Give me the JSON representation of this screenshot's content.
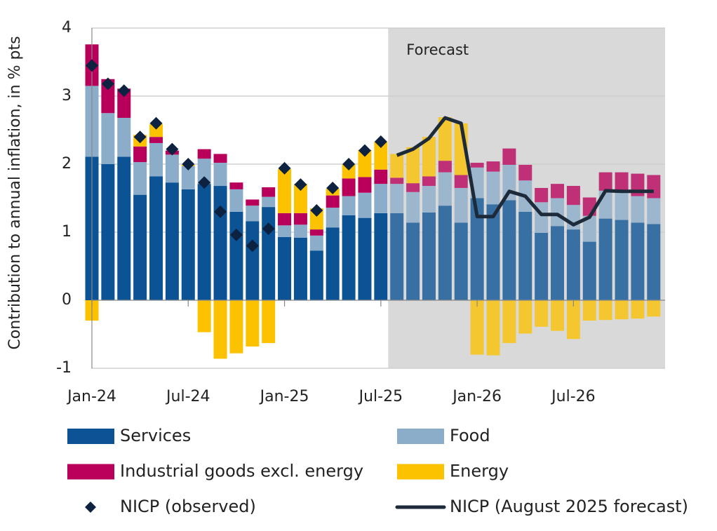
{
  "chart_data": {
    "type": "bar",
    "stacked": true,
    "ylabel": "Contribution to annual inflation, in % pts",
    "annotation": "Forecast",
    "categories": [
      "Jan-24",
      null,
      null,
      null,
      null,
      null,
      "Jul-24",
      null,
      null,
      null,
      null,
      null,
      "Jan-25",
      null,
      null,
      null,
      null,
      null,
      "Jul-25",
      null,
      null,
      null,
      null,
      null,
      "Jan-26",
      null,
      null,
      null,
      null,
      null,
      "Jul-26",
      null,
      null,
      null,
      null,
      null
    ],
    "ylim": [
      -1,
      4
    ],
    "yticks": [
      -1,
      0,
      1,
      2,
      3,
      4
    ],
    "grid": true,
    "series": [
      {
        "name": "Services",
        "type": "bar",
        "color": "#0b5394",
        "values": [
          2.11,
          2.0,
          2.11,
          1.55,
          1.82,
          1.73,
          1.63,
          1.71,
          1.68,
          1.3,
          1.16,
          1.37,
          0.93,
          0.92,
          0.73,
          1.07,
          1.25,
          1.21,
          1.28,
          1.28,
          1.14,
          1.29,
          1.39,
          1.14,
          1.5,
          1.41,
          1.47,
          1.3,
          0.99,
          1.09,
          1.04,
          0.86,
          1.2,
          1.18,
          1.14,
          1.12
        ]
      },
      {
        "name": "Food",
        "type": "bar",
        "color": "#8badca",
        "values": [
          1.04,
          0.75,
          0.57,
          0.48,
          0.49,
          0.41,
          0.34,
          0.37,
          0.34,
          0.33,
          0.23,
          0.15,
          0.17,
          0.19,
          0.22,
          0.29,
          0.28,
          0.37,
          0.43,
          0.43,
          0.45,
          0.39,
          0.49,
          0.51,
          0.45,
          0.48,
          0.52,
          0.46,
          0.45,
          0.41,
          0.36,
          0.38,
          0.41,
          0.42,
          0.39,
          0.38
        ]
      },
      {
        "name": "Industrial goods excl. energy",
        "type": "bar",
        "color": "#b8005b",
        "values": [
          0.61,
          0.5,
          0.43,
          0.23,
          0.09,
          0.06,
          0.0,
          0.14,
          0.13,
          0.1,
          0.09,
          0.14,
          0.18,
          0.17,
          0.09,
          0.18,
          0.26,
          0.23,
          0.21,
          0.09,
          0.13,
          0.14,
          0.17,
          0.19,
          0.07,
          0.15,
          0.24,
          0.23,
          0.21,
          0.21,
          0.28,
          0.27,
          0.27,
          0.28,
          0.33,
          0.34
        ]
      },
      {
        "name": "Energy",
        "type": "bar",
        "color": "#fcc200",
        "values": [
          -0.3,
          0.0,
          0.0,
          0.17,
          0.19,
          0.0,
          0.02,
          -0.47,
          -0.86,
          -0.78,
          -0.68,
          -0.63,
          0.65,
          0.43,
          0.31,
          0.1,
          0.21,
          0.4,
          0.41,
          0.35,
          0.53,
          0.58,
          0.64,
          0.76,
          -0.8,
          -0.81,
          -0.63,
          -0.49,
          -0.39,
          -0.45,
          -0.57,
          -0.3,
          -0.29,
          -0.28,
          -0.27,
          -0.24
        ]
      },
      {
        "name": "NICP (observed)",
        "type": "scatter",
        "color": "#0d2240",
        "values": [
          3.45,
          3.18,
          3.08,
          2.4,
          2.6,
          2.22,
          2.0,
          1.73,
          1.3,
          0.96,
          0.8,
          1.05,
          1.94,
          1.7,
          1.32,
          1.65,
          2.0,
          2.2,
          2.33,
          null,
          null,
          null,
          null,
          null,
          null,
          null,
          null,
          null,
          null,
          null,
          null,
          null,
          null,
          null,
          null,
          null
        ]
      },
      {
        "name": "NICP (August 2025 forecast)",
        "type": "line",
        "color": "#1c2a3a",
        "values": [
          null,
          null,
          null,
          null,
          null,
          null,
          null,
          null,
          null,
          null,
          null,
          null,
          null,
          null,
          null,
          null,
          null,
          null,
          null,
          2.13,
          2.22,
          2.38,
          2.68,
          2.6,
          1.23,
          1.23,
          1.6,
          1.53,
          1.26,
          1.26,
          1.11,
          1.22,
          1.61,
          1.6,
          1.6,
          1.6
        ]
      }
    ]
  }
}
